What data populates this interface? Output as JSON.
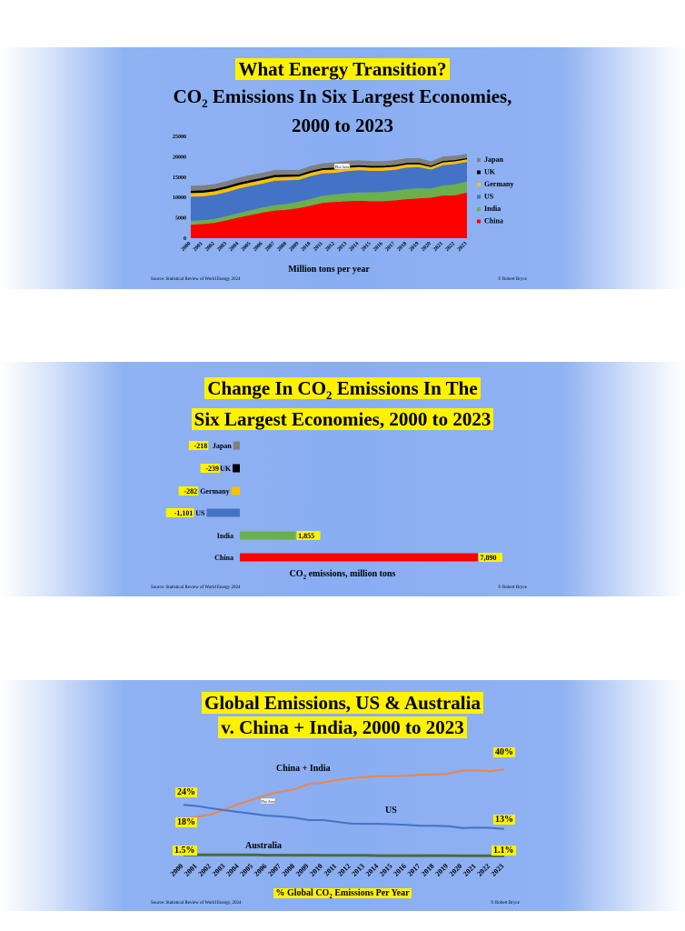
{
  "slide1": {
    "title": "What Energy Transition?",
    "subtitle_line1_pre": "CO",
    "subtitle_line1_sub": "2",
    "subtitle_line1_post": " Emissions In Six Largest Economies,",
    "subtitle_line2": "2000 to 2023",
    "xlabel": "Million tons per year",
    "source": "Source: Statistical Review of World Energy 2024",
    "credit": "© Robert Bryce",
    "plot_area_tag": "Plot Area"
  },
  "slide2": {
    "title_line1_pre": "Change In CO",
    "title_line1_sub": "2",
    "title_line1_post": " Emissions In The",
    "title_line2": "Six Largest Economies, 2000 to 2023",
    "xlabel_pre": "CO",
    "xlabel_sub": "2",
    "xlabel_post": " emissions, million tons",
    "source": "Source: Statistical Review of World Energy 2024",
    "credit": "© Robert Bryce"
  },
  "slide3": {
    "title_line1": "Global Emissions, US & Australia",
    "title_line2": "v. China + India, 2000 to 2023",
    "xlabel_pre": "% Global CO",
    "xlabel_sub": "2",
    "xlabel_post": " Emissions Per Year",
    "source": "Source: Statistical Review of World Energy, 2024",
    "credit": "© Robert Bryce",
    "plot_area_tag": "Plot Area",
    "label_china_india": "China + India",
    "label_us": "US",
    "label_australia": "Australia",
    "end_labels": {
      "ci_start": "18%",
      "ci_end": "40%",
      "us_start": "24%",
      "us_end": "13%",
      "au_start": "1.5%",
      "au_end": "1.1%"
    }
  },
  "chart_data": [
    {
      "type": "area",
      "stacked": true,
      "x": [
        "2000",
        "2001",
        "2002",
        "2003",
        "2004",
        "2005",
        "2006",
        "2007",
        "2008",
        "2009",
        "2010",
        "2011",
        "2012",
        "2013",
        "2014",
        "2015",
        "2016",
        "2017",
        "2018",
        "2019",
        "2020",
        "2021",
        "2022",
        "2023"
      ],
      "ylim": [
        0,
        25000
      ],
      "yticks": [
        "0",
        "5000",
        "10000",
        "15000",
        "20000",
        "25000"
      ],
      "xlabel": "Million tons per year",
      "legend_position": "right",
      "series": [
        {
          "name": "China",
          "color": "#ff0000",
          "values": [
            3350,
            3500,
            3800,
            4400,
            5100,
            5700,
            6300,
            6800,
            7000,
            7400,
            8000,
            8700,
            8900,
            9100,
            9200,
            9100,
            9100,
            9300,
            9600,
            9800,
            9950,
            10500,
            10550,
            11200
          ]
        },
        {
          "name": "India",
          "color": "#6ab04c",
          "values": [
            900,
            920,
            950,
            1000,
            1080,
            1150,
            1230,
            1330,
            1430,
            1550,
            1650,
            1730,
            1850,
            1950,
            2050,
            2150,
            2250,
            2350,
            2450,
            2450,
            2250,
            2450,
            2650,
            2750
          ]
        },
        {
          "name": "US",
          "color": "#4472c4",
          "values": [
            5950,
            5850,
            5900,
            5930,
            6000,
            6000,
            5900,
            6000,
            5800,
            5400,
            5600,
            5500,
            5300,
            5400,
            5450,
            5300,
            5200,
            5150,
            5300,
            5200,
            4650,
            5000,
            5000,
            4800
          ]
        },
        {
          "name": "Germany",
          "color": "#ffc000",
          "values": [
            880,
            900,
            880,
            880,
            880,
            860,
            870,
            840,
            850,
            790,
            820,
            800,
            810,
            830,
            790,
            790,
            800,
            790,
            760,
            700,
            630,
            670,
            660,
            600
          ]
        },
        {
          "name": "UK",
          "color": "#000000",
          "values": [
            580,
            590,
            570,
            580,
            580,
            580,
            570,
            560,
            550,
            500,
            510,
            470,
            490,
            480,
            440,
            430,
            410,
            400,
            390,
            380,
            330,
            350,
            340,
            330
          ]
        },
        {
          "name": "Japan",
          "color": "#808080",
          "values": [
            1220,
            1210,
            1220,
            1220,
            1230,
            1230,
            1220,
            1240,
            1170,
            1100,
            1160,
            1190,
            1250,
            1260,
            1220,
            1190,
            1170,
            1170,
            1130,
            1100,
            1040,
            1070,
            1060,
            1000
          ]
        }
      ]
    },
    {
      "type": "bar",
      "orientation": "horizontal",
      "categories": [
        "Japan",
        "UK",
        "Germany",
        "US",
        "India",
        "China"
      ],
      "values": [
        -218,
        -239,
        -282,
        -1101,
        1855,
        7890
      ],
      "value_labels": [
        "-218",
        "-239",
        "-282",
        "-1,101",
        "1,855",
        "7,890"
      ],
      "colors": [
        "#808080",
        "#000000",
        "#ffc000",
        "#4472c4",
        "#6ab04c",
        "#ff0000"
      ],
      "xlabel": "CO2 emissions, million tons"
    },
    {
      "type": "line",
      "x": [
        "2000",
        "2001",
        "2002",
        "2003",
        "2004",
        "2005",
        "2006",
        "2007",
        "2008",
        "2009",
        "2010",
        "2011",
        "2012",
        "2013",
        "2014",
        "2015",
        "2016",
        "2017",
        "2018",
        "2019",
        "2020",
        "2021",
        "2022",
        "2023"
      ],
      "ylim": [
        0,
        45
      ],
      "xlabel": "% Global CO2 Emissions Per Year",
      "series": [
        {
          "name": "China + India",
          "color": "#f0834a",
          "values": [
            18,
            18.6,
            19.8,
            22,
            24.5,
            26.5,
            28.5,
            30,
            31,
            33.5,
            34,
            35.2,
            36,
            36.5,
            37,
            37,
            37.2,
            37.5,
            37.7,
            38,
            39.5,
            39.5,
            39.2,
            40
          ]
        },
        {
          "name": "US",
          "color": "#4472c4",
          "values": [
            24,
            23.5,
            22.5,
            21.6,
            20.8,
            20,
            19.2,
            18.8,
            18.2,
            17.2,
            17.2,
            16.4,
            15.6,
            15.5,
            15.5,
            15.3,
            15,
            14.6,
            14.6,
            14.4,
            13.6,
            13.8,
            13.7,
            13.2
          ]
        },
        {
          "name": "Australia",
          "color": "#4a6b3a",
          "values": [
            1.5,
            1.5,
            1.5,
            1.5,
            1.5,
            1.5,
            1.4,
            1.4,
            1.4,
            1.4,
            1.3,
            1.3,
            1.3,
            1.3,
            1.2,
            1.2,
            1.2,
            1.2,
            1.2,
            1.2,
            1.1,
            1.1,
            1.1,
            1.1
          ]
        }
      ]
    }
  ]
}
